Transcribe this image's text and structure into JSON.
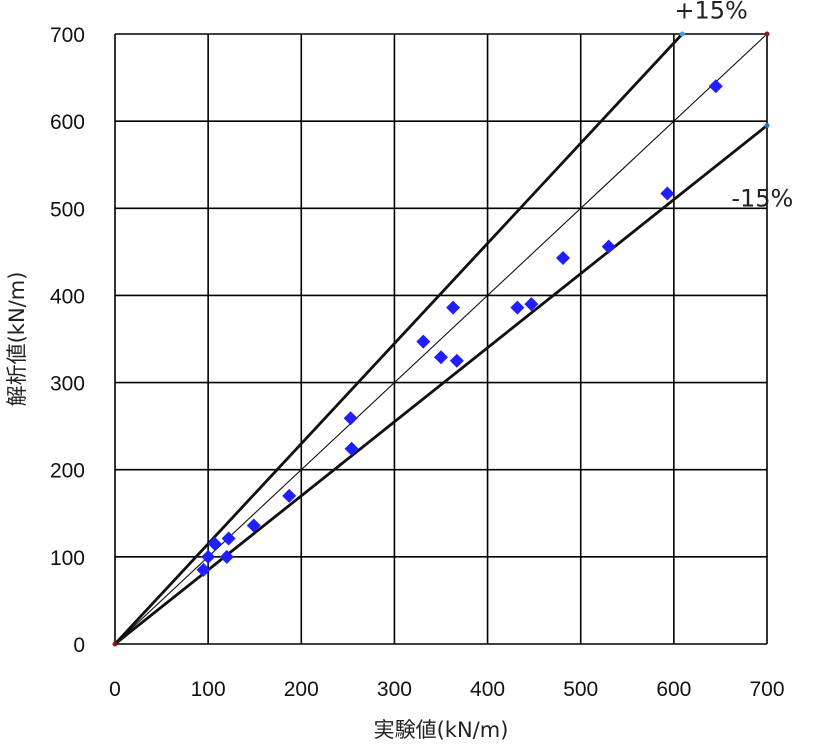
{
  "chart_data": {
    "type": "scatter",
    "title": "",
    "xlabel": "実験値(kN/m)",
    "ylabel": "解析値(kN/m)",
    "xlim": [
      0,
      700
    ],
    "ylim": [
      0,
      700
    ],
    "x_ticks": [
      0,
      100,
      200,
      300,
      400,
      500,
      600,
      700
    ],
    "y_ticks": [
      0,
      100,
      200,
      300,
      400,
      500,
      600,
      700
    ],
    "grid": true,
    "legend": "none",
    "series": [
      {
        "color": "#1f1fff",
        "marker": "diamond",
        "points": [
          {
            "x": 95,
            "y": 85
          },
          {
            "x": 100,
            "y": 100
          },
          {
            "x": 107,
            "y": 115
          },
          {
            "x": 120,
            "y": 100
          },
          {
            "x": 122,
            "y": 121
          },
          {
            "x": 149,
            "y": 136
          },
          {
            "x": 187,
            "y": 170
          },
          {
            "x": 253,
            "y": 259
          },
          {
            "x": 254,
            "y": 224
          },
          {
            "x": 331,
            "y": 347
          },
          {
            "x": 350,
            "y": 329
          },
          {
            "x": 363,
            "y": 386
          },
          {
            "x": 367,
            "y": 325
          },
          {
            "x": 432,
            "y": 386
          },
          {
            "x": 447,
            "y": 390
          },
          {
            "x": 481,
            "y": 443
          },
          {
            "x": 530,
            "y": 456
          },
          {
            "x": 593,
            "y": 517
          },
          {
            "x": 645,
            "y": 640
          }
        ]
      }
    ],
    "reference_lines": [
      {
        "points": [
          [
            0,
            0
          ],
          [
            609,
            700
          ]
        ],
        "style": "thick",
        "annotation": "+15%"
      },
      {
        "points": [
          [
            0,
            0
          ],
          [
            700,
            700
          ]
        ],
        "style": "thin",
        "annotation": ""
      },
      {
        "points": [
          [
            0,
            0
          ],
          [
            700,
            595
          ]
        ],
        "style": "thick",
        "annotation": "-15%"
      }
    ],
    "annotations": [
      {
        "text": "+15%",
        "x": 640,
        "y": 718
      },
      {
        "text": "-15%",
        "x": 695,
        "y": 502
      }
    ],
    "colors": {
      "points": "#1f1fff",
      "grid": "#000000",
      "lines": "#111111",
      "line_end_marks": [
        "#4aa0e0",
        "#8b1a1a",
        "#2a6fd0"
      ]
    }
  }
}
